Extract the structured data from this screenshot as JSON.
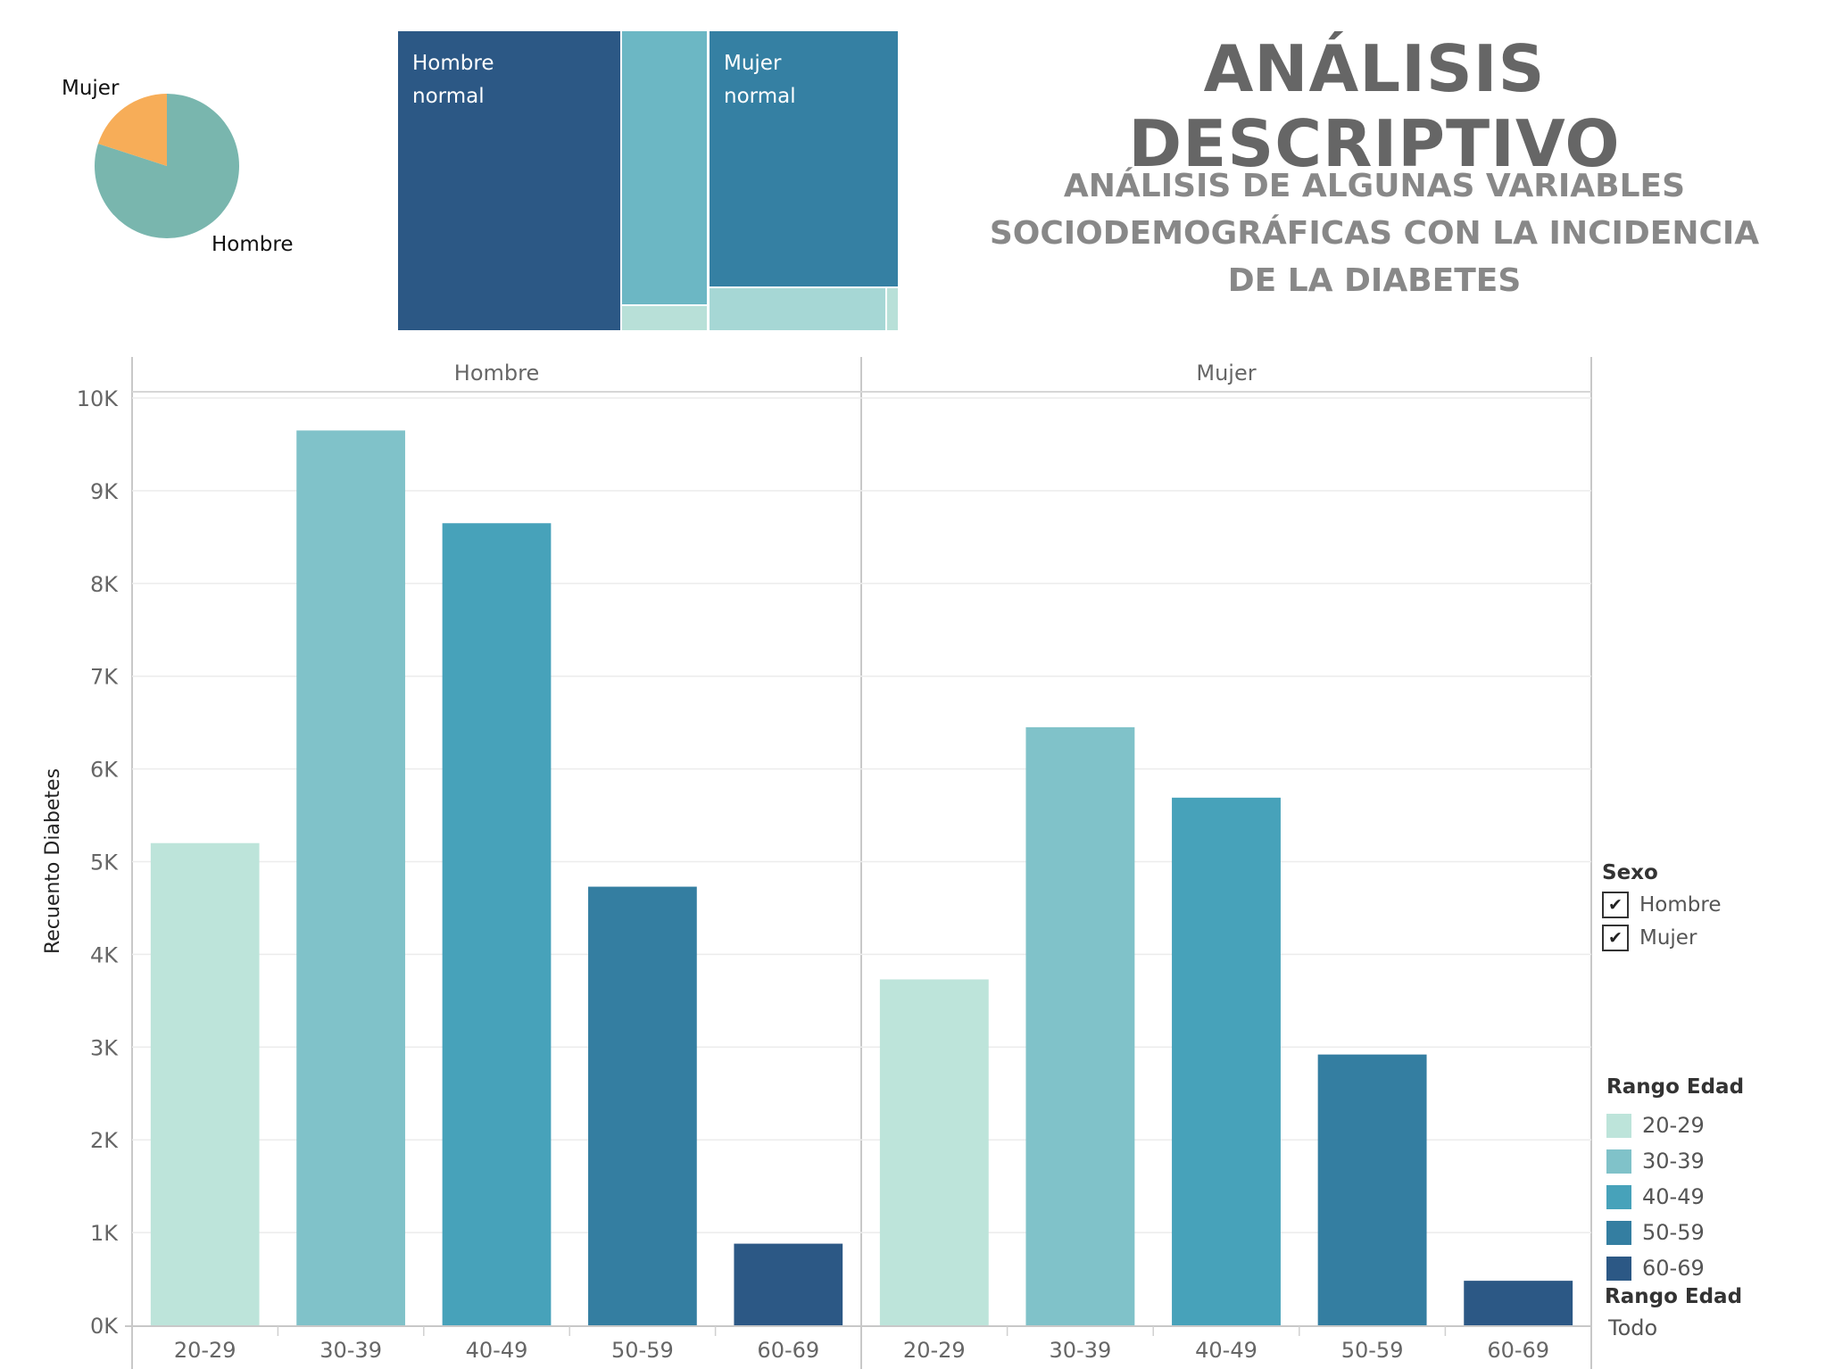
{
  "dashboard": {
    "title": "ANÁLISIS DESCRIPTIVO",
    "subtitle": "ANÁLISIS DE ALGUNAS VARIABLES SOCIODEMOGRÁFICAS CON LA INCIDENCIA DE LA DIABETES"
  },
  "pie": {
    "slices": [
      {
        "label": "Hombre",
        "share": 0.8,
        "color": "#79b6ae"
      },
      {
        "label": "Mujer",
        "share": 0.2,
        "color": "#f7ad58"
      }
    ]
  },
  "treemap": {
    "cells": [
      {
        "label": "Hombre\nnormal",
        "color": "#2c5885"
      },
      {
        "label": "",
        "color": "#6cb7c4"
      },
      {
        "label": "",
        "color": "#b8e0d8"
      },
      {
        "label": "Mujer\nnormal",
        "color": "#3580a3"
      },
      {
        "label": "",
        "color": "#a6d7d5"
      },
      {
        "label": "",
        "color": "#b8e0d8"
      }
    ]
  },
  "chart_data": {
    "type": "bar",
    "ylabel": "Recuento Diabetes",
    "ylim": [
      0,
      10000
    ],
    "yticks": [
      0,
      1000,
      2000,
      3000,
      4000,
      5000,
      6000,
      7000,
      8000,
      9000,
      10000
    ],
    "ytick_labels": [
      "0K",
      "1K",
      "2K",
      "3K",
      "4K",
      "5K",
      "6K",
      "7K",
      "8K",
      "9K",
      "10K"
    ],
    "categories": [
      "20-29",
      "30-39",
      "40-49",
      "50-59",
      "60-69"
    ],
    "colors": [
      "#bde4da",
      "#80c2c9",
      "#47a2ba",
      "#347ea1",
      "#2c5885"
    ],
    "panels": [
      {
        "name": "Hombre",
        "values": [
          5200,
          9650,
          8650,
          4730,
          880
        ]
      },
      {
        "name": "Mujer",
        "values": [
          3730,
          6450,
          5690,
          2920,
          480
        ]
      }
    ],
    "grid": true
  },
  "legend_sexo": {
    "title": "Sexo",
    "items": [
      {
        "label": "Hombre",
        "checked": true,
        "mark": "✔"
      },
      {
        "label": "Mujer",
        "checked": true,
        "mark": "✔"
      }
    ]
  },
  "legend_rango": {
    "title": "Rango Edad",
    "items": [
      {
        "label": "20-29",
        "color": "#bde4da"
      },
      {
        "label": "30-39",
        "color": "#80c2c9"
      },
      {
        "label": "40-49",
        "color": "#47a2ba"
      },
      {
        "label": "50-59",
        "color": "#347ea1"
      },
      {
        "label": "60-69",
        "color": "#2c5885"
      }
    ]
  },
  "filter_rango": {
    "title": "Rango Edad",
    "value": "Todo"
  }
}
